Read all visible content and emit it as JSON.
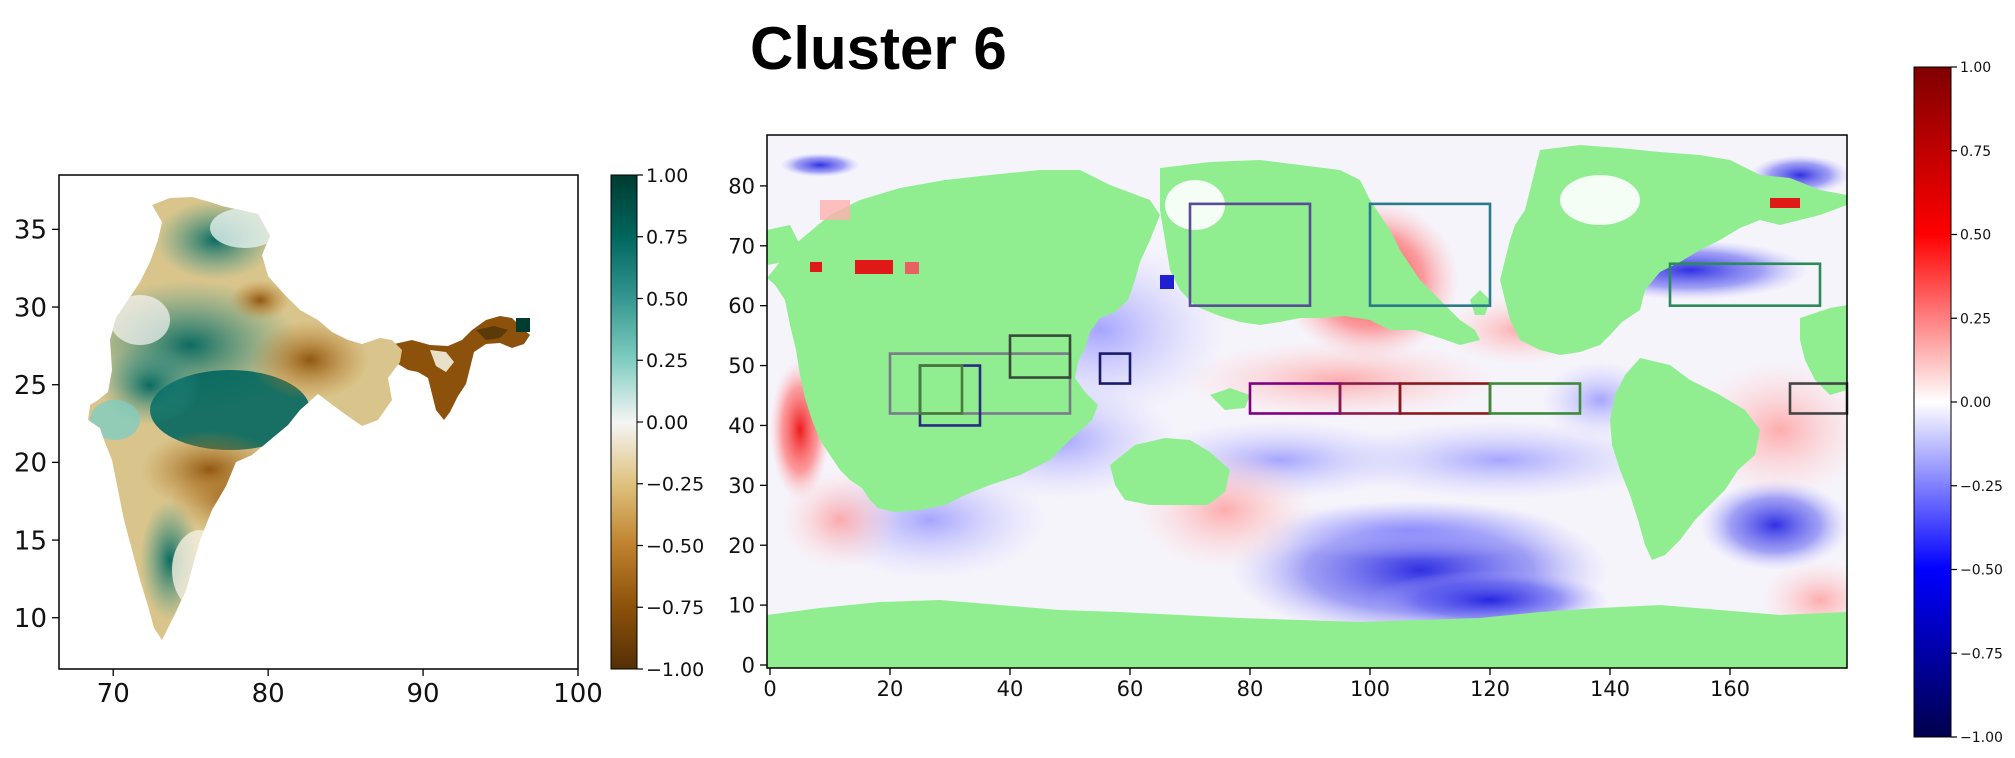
{
  "title": "Cluster 6",
  "colors": {
    "land": "#90ee90",
    "brbg_neg": "#543005",
    "brbg_pos": "#003c30",
    "seismic_neg": "#00004c",
    "seismic_pos": "#7f0000"
  },
  "chart_data": [
    {
      "type": "heatmap",
      "name": "india-map",
      "xticks": [
        "70",
        "80",
        "90",
        "100"
      ],
      "yticks": [
        "10",
        "15",
        "20",
        "25",
        "30",
        "35"
      ],
      "xlim": [
        66.5,
        100
      ],
      "ylim": [
        6.7,
        38.5
      ],
      "colorbar": {
        "cmap": "BrBG",
        "range": [
          -1,
          1
        ],
        "ticks": [
          "1.00",
          "0.75",
          "0.50",
          "0.25",
          "0.00",
          "−0.25",
          "−0.50",
          "−0.75",
          "−1.00"
        ]
      }
    },
    {
      "type": "heatmap",
      "name": "global-map",
      "xticks": [
        "0",
        "20",
        "40",
        "60",
        "80",
        "100",
        "120",
        "140",
        "160"
      ],
      "yticks": [
        "0",
        "10",
        "20",
        "30",
        "40",
        "50",
        "60",
        "70",
        "80"
      ],
      "xlim": [
        -0.5,
        179.5
      ],
      "ylim": [
        -0.5,
        88.5
      ],
      "colorbar": {
        "cmap": "seismic",
        "range": [
          -1,
          1
        ],
        "ticks": [
          "1.00",
          "0.75",
          "0.50",
          "0.25",
          "0.00",
          "−0.25",
          "−0.50",
          "−0.75",
          "−1.00"
        ]
      },
      "boxes": [
        {
          "x": [
            20,
            50
          ],
          "y": [
            42,
            52
          ],
          "color": "#7a7a8a"
        },
        {
          "x": [
            25,
            35
          ],
          "y": [
            40,
            50
          ],
          "color": "#2a2a80"
        },
        {
          "x": [
            25,
            32
          ],
          "y": [
            42,
            50
          ],
          "color": "#4a7a3a"
        },
        {
          "x": [
            40,
            50
          ],
          "y": [
            48,
            55
          ],
          "color": "#3a4a3a"
        },
        {
          "x": [
            55,
            60
          ],
          "y": [
            47,
            52
          ],
          "color": "#1a1a6a"
        },
        {
          "x": [
            70,
            90
          ],
          "y": [
            60,
            77
          ],
          "color": "#5a4a9a"
        },
        {
          "x": [
            100,
            120
          ],
          "y": [
            60,
            77
          ],
          "color": "#2a7a8a"
        },
        {
          "x": [
            80,
            95
          ],
          "y": [
            42,
            47
          ],
          "color": "#800080"
        },
        {
          "x": [
            95,
            105
          ],
          "y": [
            42,
            47
          ],
          "color": "#8a1a4a"
        },
        {
          "x": [
            105,
            120
          ],
          "y": [
            42,
            47
          ],
          "color": "#8a1a1a"
        },
        {
          "x": [
            120,
            135
          ],
          "y": [
            42,
            47
          ],
          "color": "#3a8a3a"
        },
        {
          "x": [
            150,
            175
          ],
          "y": [
            60,
            67
          ],
          "color": "#2a8a5a"
        },
        {
          "x": [
            170,
            180
          ],
          "y": [
            42,
            47
          ],
          "color": "#444444"
        }
      ]
    }
  ]
}
